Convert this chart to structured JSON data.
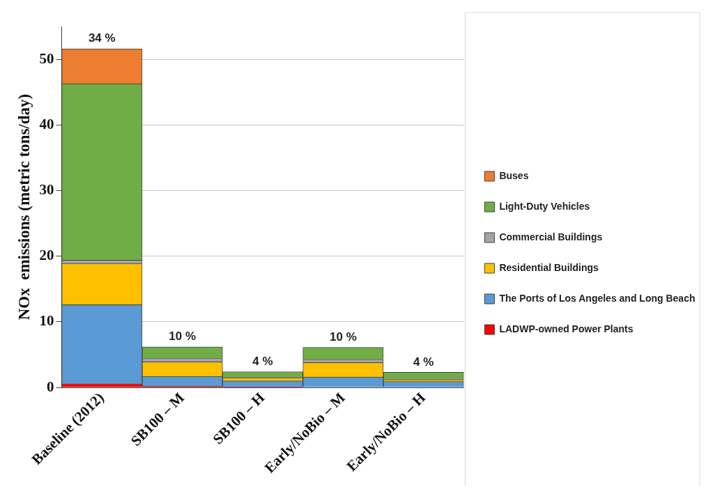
{
  "chart_data": {
    "type": "bar",
    "stacked": true,
    "ylabel": "NOx  emissions (metric tons/day)",
    "categories": [
      "Baseline (2012)",
      "SB100 – M",
      "SB100 – H",
      "Early/NoBio – M",
      "Early/NoBio – H"
    ],
    "series": [
      {
        "name": "LADWP-owned Power Plants",
        "color": "#ff0000",
        "values": [
          0.6,
          0.2,
          0.1,
          0,
          0
        ]
      },
      {
        "name": "The Ports of Los Angeles and Long Beach",
        "color": "#5b9bd5",
        "values": [
          12.0,
          1.5,
          0.9,
          1.6,
          0.9
        ]
      },
      {
        "name": "Residential Buildings",
        "color": "#ffc000",
        "values": [
          6.3,
          2.2,
          0.5,
          2.2,
          0.3
        ]
      },
      {
        "name": "Commercial Buildings",
        "color": "#a5a5a5",
        "values": [
          0.5,
          0.6,
          0.1,
          0.5,
          0.1
        ]
      },
      {
        "name": "Light-Duty Vehicles",
        "color": "#70ad47",
        "values": [
          26.9,
          1.7,
          0.8,
          1.8,
          1.0
        ]
      },
      {
        "name": "Buses",
        "color": "#ed7d31",
        "values": [
          5.3,
          0,
          0,
          0,
          0
        ]
      }
    ],
    "annotations": [
      {
        "text": "34 %",
        "x": "Baseline (2012)",
        "y": 51.6
      },
      {
        "text": "10 %",
        "x": "SB100 – M",
        "y": 6.2
      },
      {
        "text": "4 %",
        "x": "SB100 – H",
        "y": 2.4
      },
      {
        "text": "10 %",
        "x": "Early/NoBio – M",
        "y": 6.1
      },
      {
        "text": "4 %",
        "x": "Early/NoBio – H",
        "y": 2.3
      }
    ],
    "ylim": [
      0,
      55
    ],
    "yticks": [
      0,
      10,
      20,
      30,
      40,
      50
    ],
    "grid": "y",
    "legend": "right"
  }
}
